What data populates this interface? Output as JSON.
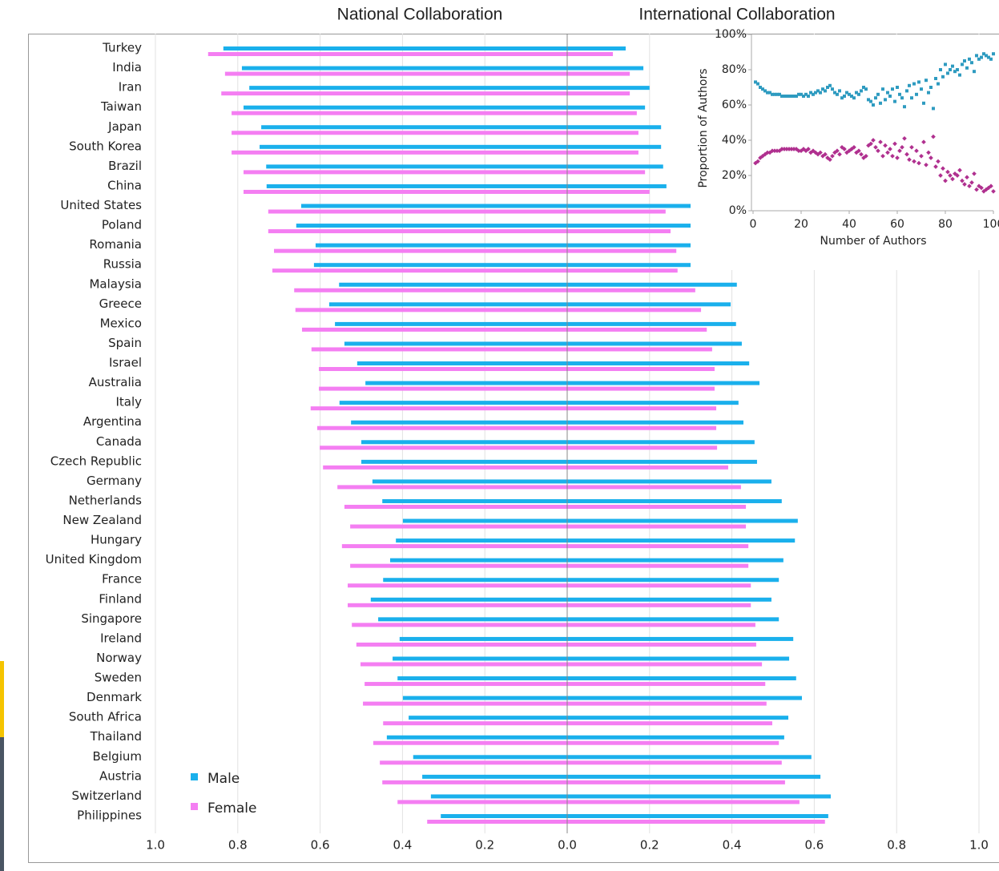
{
  "chart_data": [
    {
      "type": "bar",
      "title": "National Collaboration",
      "categories": [
        "Turkey",
        "India",
        "Iran",
        "Taiwan",
        "Japan",
        "South Korea",
        "Brazil",
        "China",
        "United States",
        "Poland",
        "Romania",
        "Russia",
        "Malaysia",
        "Greece",
        "Mexico",
        "Spain",
        "Israel",
        "Australia",
        "Italy",
        "Argentina",
        "Canada",
        "Czech Republic",
        "Germany",
        "Netherlands",
        "New Zealand",
        "Hungary",
        "United Kingdom",
        "France",
        "Finland",
        "Singapore",
        "Ireland",
        "Norway",
        "Sweden",
        "Denmark",
        "South Africa",
        "Thailand",
        "Belgium",
        "Austria",
        "Switzerland",
        "Philippines"
      ],
      "series": [
        {
          "name": "Male",
          "color": "#1ab0ec",
          "values": [
            0.835,
            0.79,
            0.772,
            0.786,
            0.743,
            0.747,
            0.731,
            0.73,
            0.646,
            0.658,
            0.611,
            0.615,
            0.554,
            0.578,
            0.564,
            0.541,
            0.51,
            0.49,
            0.553,
            0.525,
            0.5,
            0.5,
            0.473,
            0.449,
            0.399,
            0.416,
            0.43,
            0.447,
            0.477,
            0.459,
            0.407,
            0.424,
            0.412,
            0.399,
            0.385,
            0.438,
            0.374,
            0.352,
            0.331,
            0.307
          ]
        },
        {
          "name": "Female",
          "color": "#f47ef2",
          "values": [
            0.872,
            0.831,
            0.84,
            0.815,
            0.815,
            0.815,
            0.786,
            0.786,
            0.726,
            0.726,
            0.712,
            0.716,
            0.663,
            0.66,
            0.644,
            0.621,
            0.603,
            0.603,
            0.623,
            0.607,
            0.601,
            0.593,
            0.558,
            0.541,
            0.527,
            0.547,
            0.527,
            0.533,
            0.533,
            0.523,
            0.512,
            0.502,
            0.492,
            0.496,
            0.447,
            0.471,
            0.455,
            0.449,
            0.412,
            0.34
          ]
        }
      ],
      "xlim": [
        1,
        0
      ],
      "xticks": [
        {
          "value": 1,
          "label": "1.0"
        },
        0.8,
        0.6,
        0.4,
        0.2
      ],
      "grid": true,
      "legend": "lower left"
    },
    {
      "type": "bar",
      "title": "International Collaboration",
      "series": [
        {
          "color": "#1ab0ec",
          "values": [
            0.142,
            0.185,
            0.2,
            0.189,
            0.228,
            0.228,
            0.233,
            0.241,
            0.302,
            0.305,
            0.344,
            0.354,
            0.412,
            0.397,
            0.41,
            0.424,
            0.442,
            0.467,
            0.416,
            0.428,
            0.455,
            0.461,
            0.496,
            0.521,
            0.56,
            0.553,
            0.525,
            0.514,
            0.496,
            0.514,
            0.549,
            0.539,
            0.556,
            0.57,
            0.537,
            0.527,
            0.593,
            0.615,
            0.64,
            0.634
          ]
        },
        {
          "color": "#f47ef2",
          "values": [
            0.111,
            0.152,
            0.152,
            0.169,
            0.173,
            0.173,
            0.189,
            0.2,
            0.239,
            0.251,
            0.265,
            0.268,
            0.311,
            0.325,
            0.339,
            0.352,
            0.358,
            0.358,
            0.362,
            0.362,
            0.364,
            0.391,
            0.422,
            0.434,
            0.434,
            0.44,
            0.44,
            0.446,
            0.446,
            0.457,
            0.459,
            0.473,
            0.481,
            0.484,
            0.498,
            0.514,
            0.521,
            0.529,
            0.564,
            0.626
          ]
        }
      ],
      "xlim": [
        0,
        1
      ],
      "xticks": [
        {
          "value": 0,
          "label": "0.0"
        },
        0.2,
        0.4,
        0.6,
        0.8,
        {
          "value": 1,
          "label": "1.0"
        }
      ],
      "grid": true
    },
    {
      "type": "scatter",
      "xlabel": "Number of Authors",
      "ylabel": "Proportion of Authors",
      "x": [
        1,
        2,
        3,
        4,
        5,
        6,
        7,
        8,
        9,
        10,
        11,
        12,
        13,
        14,
        15,
        16,
        17,
        18,
        19,
        20,
        21,
        22,
        23,
        24,
        25,
        26,
        27,
        28,
        29,
        30,
        31,
        32,
        33,
        34,
        35,
        36,
        37,
        38,
        39,
        40,
        41,
        42,
        43,
        44,
        45,
        46,
        47,
        48,
        49,
        50,
        51,
        52,
        53,
        54,
        55,
        56,
        57,
        58,
        59,
        60,
        61,
        62,
        63,
        64,
        65,
        66,
        67,
        68,
        69,
        70,
        71,
        72,
        73,
        74,
        75,
        76,
        77,
        78,
        79,
        80,
        81,
        82,
        83,
        84,
        85,
        86,
        87,
        88,
        89,
        90,
        91,
        92,
        93,
        94,
        95,
        96,
        97,
        98,
        99,
        100
      ],
      "series": [
        {
          "color": "#2e9bc0",
          "values": [
            73,
            72,
            70,
            69,
            68,
            67,
            67,
            66,
            66,
            66,
            66,
            65,
            65,
            65,
            65,
            65,
            65,
            65,
            66,
            66,
            65,
            66,
            65,
            67,
            66,
            67,
            68,
            67,
            69,
            68,
            70,
            71,
            69,
            67,
            66,
            68,
            64,
            65,
            67,
            66,
            65,
            64,
            67,
            66,
            68,
            70,
            69,
            63,
            62,
            60,
            64,
            66,
            61,
            69,
            63,
            67,
            65,
            69,
            62,
            70,
            66,
            64,
            59,
            68,
            71,
            64,
            72,
            66,
            73,
            69,
            61,
            74,
            67,
            70,
            58,
            75,
            72,
            80,
            76,
            83,
            78,
            80,
            82,
            79,
            80,
            77,
            83,
            85,
            81,
            86,
            84,
            79,
            88,
            86,
            87,
            89,
            88,
            87,
            86,
            89
          ]
        },
        {
          "color": "#b0308f",
          "values": [
            27,
            28,
            30,
            31,
            32,
            33,
            33,
            34,
            34,
            34,
            34,
            35,
            35,
            35,
            35,
            35,
            35,
            35,
            34,
            34,
            35,
            34,
            35,
            33,
            34,
            33,
            32,
            33,
            31,
            32,
            30,
            29,
            31,
            33,
            34,
            32,
            36,
            35,
            33,
            34,
            35,
            36,
            33,
            34,
            32,
            30,
            31,
            37,
            38,
            40,
            36,
            34,
            39,
            31,
            37,
            33,
            35,
            31,
            38,
            30,
            34,
            36,
            41,
            32,
            29,
            36,
            28,
            34,
            27,
            31,
            39,
            26,
            33,
            30,
            42,
            25,
            28,
            20,
            24,
            17,
            22,
            20,
            18,
            21,
            20,
            23,
            17,
            15,
            19,
            14,
            16,
            21,
            12,
            14,
            13,
            11,
            12,
            13,
            14,
            11
          ]
        }
      ],
      "xlim": [
        0,
        100
      ],
      "xticks": [
        0,
        20,
        40,
        60,
        80,
        100
      ],
      "ylim": [
        0,
        100
      ],
      "yticks": [
        {
          "value": 0,
          "label": "0%"
        },
        {
          "value": 20,
          "label": "20%"
        },
        {
          "value": 40,
          "label": "40%"
        },
        {
          "value": 60,
          "label": "60%"
        },
        {
          "value": 80,
          "label": "80%"
        },
        {
          "value": 100,
          "label": "100%"
        }
      ]
    }
  ]
}
